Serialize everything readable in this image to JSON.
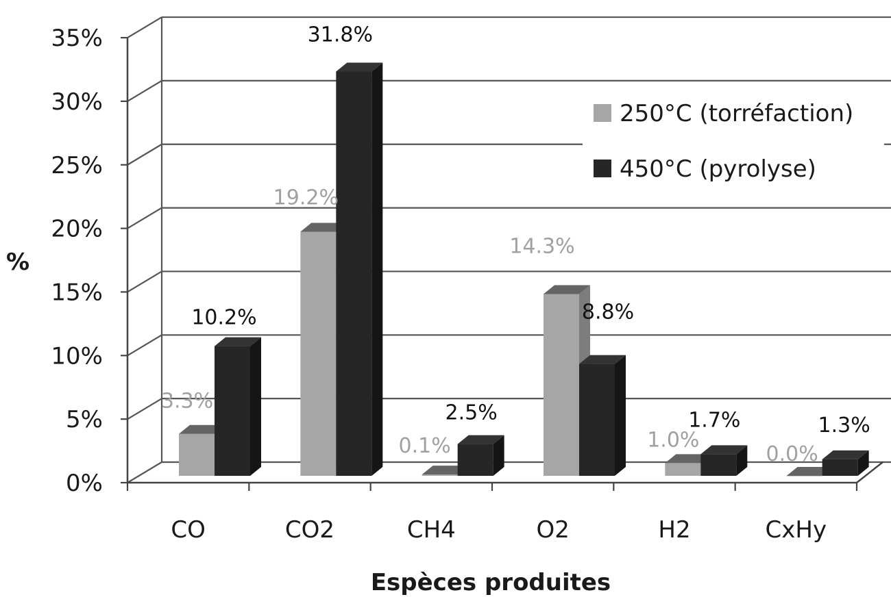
{
  "chart_data": {
    "type": "bar",
    "categories": [
      "CO",
      "CO2",
      "CH4",
      "O2",
      "H2",
      "CxHy"
    ],
    "series": [
      {
        "name": "250°C (torréfaction)",
        "values": [
          3.3,
          19.2,
          0.1,
          14.3,
          1.0,
          0.0
        ],
        "labels": [
          "3.3%",
          "19.2%",
          "0.1%",
          "14.3%",
          "1.0%",
          "0.0%"
        ],
        "color": "#a6a6a6",
        "label_color": "#a0a0a0"
      },
      {
        "name": "450°C (pyrolyse)",
        "values": [
          10.2,
          31.8,
          2.5,
          8.8,
          1.7,
          1.3
        ],
        "labels": [
          "10.2%",
          "31.8%",
          "2.5%",
          "8.8%",
          "1.7%",
          "1.3%"
        ],
        "color": "#262626",
        "label_color": "#111111"
      }
    ],
    "yticks": [
      "0%",
      "5%",
      "10%",
      "15%",
      "20%",
      "25%",
      "30%",
      "35%"
    ],
    "ylim": [
      0,
      35
    ],
    "xlabel": "Espèces produites",
    "ylabel": "%",
    "grid": true,
    "legend": "top-right",
    "style": "3d-column"
  }
}
